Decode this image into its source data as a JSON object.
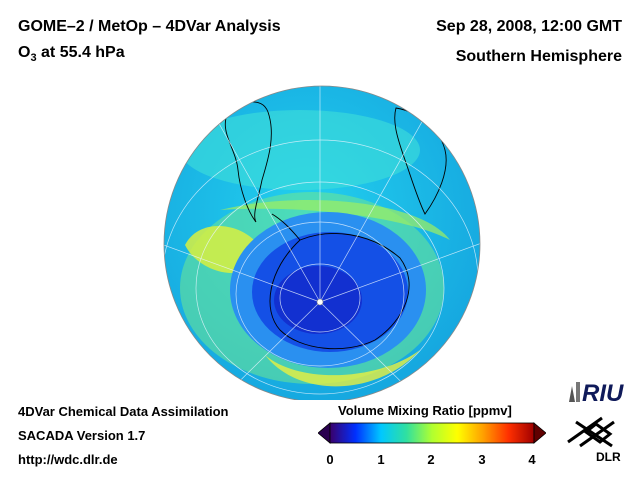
{
  "header": {
    "title": "GOME–2 / MetOp – 4DVar Analysis",
    "species": "O",
    "species_sub": "3",
    "level": " at 55.4 hPa",
    "datetime": "Sep 28, 2008, 12:00 GMT",
    "hemisphere": "Southern Hemisphere"
  },
  "credits": {
    "line1": "4DVar Chemical Data Assimilation",
    "line2": "SACADA Version 1.7",
    "line3": "http://wdc.dlr.de"
  },
  "colorbar": {
    "title": "Volume Mixing Ratio [ppmv]",
    "ticks": [
      "0",
      "1",
      "2",
      "3",
      "4"
    ],
    "colors": [
      "#3a006a",
      "#0030ff",
      "#00c8ff",
      "#30e0a0",
      "#b0ff30",
      "#ffff00",
      "#ffa000",
      "#ff3000",
      "#a00000"
    ]
  },
  "logos": {
    "riu": "RIU",
    "dlr": "DLR"
  }
}
